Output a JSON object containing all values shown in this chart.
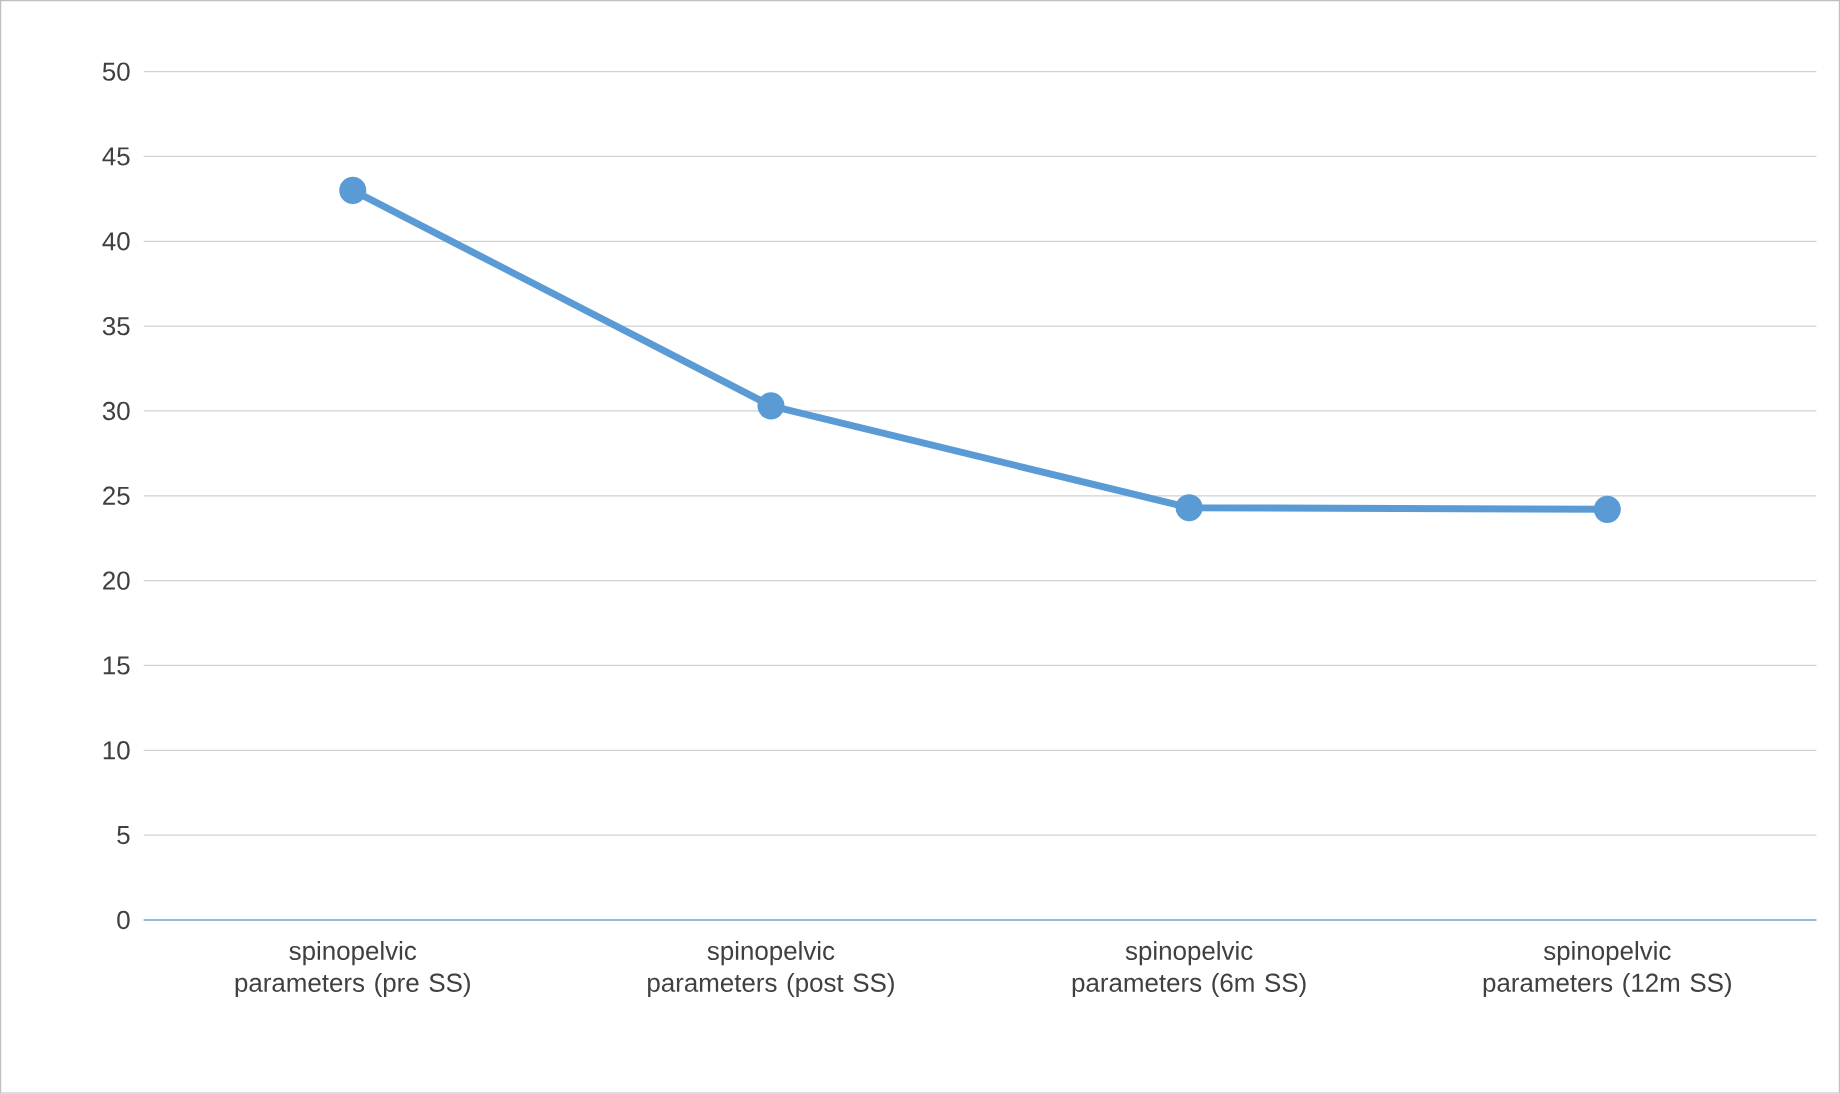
{
  "chart_data": {
    "type": "line",
    "categories": [
      "spinopelvic parameters (pre SS)",
      "spinopelvic parameters (post SS)",
      "spinopelvic parameters (6m SS)",
      "spinopelvic parameters (12m SS)"
    ],
    "series": [
      {
        "color": "#5b9bd5",
        "values": [
          43,
          30.3,
          24.3,
          24.2
        ]
      }
    ],
    "ylim": [
      0,
      50
    ],
    "yticks": [
      0,
      5,
      10,
      15,
      20,
      25,
      30,
      35,
      40,
      45,
      50
    ],
    "grid": "y",
    "marker": "circle",
    "line_style": "solid"
  }
}
